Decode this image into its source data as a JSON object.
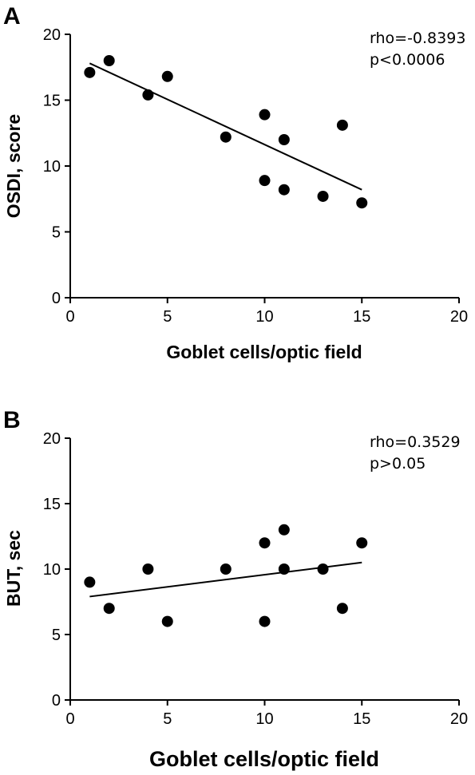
{
  "chart_data": [
    {
      "type": "scatter",
      "panel_label": "A",
      "xlabel": "Goblet cells/optic field",
      "ylabel": "OSDI, score",
      "xlim": [
        0,
        20
      ],
      "ylim": [
        0,
        20
      ],
      "xticks": [
        "0",
        "5",
        "10",
        "15",
        "20"
      ],
      "yticks": [
        "0",
        "5",
        "10",
        "15",
        "20"
      ],
      "annotations": [
        "rho=-0.8393",
        "p<0.0006"
      ],
      "points": [
        {
          "x": 1,
          "y": 17.1
        },
        {
          "x": 2,
          "y": 18.0
        },
        {
          "x": 4,
          "y": 15.4
        },
        {
          "x": 5,
          "y": 16.8
        },
        {
          "x": 8,
          "y": 12.2
        },
        {
          "x": 10,
          "y": 13.9
        },
        {
          "x": 10,
          "y": 8.9
        },
        {
          "x": 11,
          "y": 12.0
        },
        {
          "x": 11,
          "y": 8.2
        },
        {
          "x": 13,
          "y": 7.7
        },
        {
          "x": 14,
          "y": 13.1
        },
        {
          "x": 15,
          "y": 7.2
        }
      ],
      "fit_line": {
        "x": [
          1,
          15
        ],
        "y": [
          17.8,
          8.2
        ]
      },
      "grid": false,
      "legend": false
    },
    {
      "type": "scatter",
      "panel_label": "B",
      "xlabel": "Goblet cells/optic field",
      "ylabel": "BUT, sec",
      "xlim": [
        0,
        20
      ],
      "ylim": [
        0,
        20
      ],
      "xticks": [
        "0",
        "5",
        "10",
        "15",
        "20"
      ],
      "yticks": [
        "0",
        "5",
        "10",
        "15",
        "20"
      ],
      "annotations": [
        "rho=0.3529",
        "p>0.05"
      ],
      "points": [
        {
          "x": 1,
          "y": 9
        },
        {
          "x": 2,
          "y": 7
        },
        {
          "x": 4,
          "y": 10
        },
        {
          "x": 5,
          "y": 6
        },
        {
          "x": 8,
          "y": 10
        },
        {
          "x": 10,
          "y": 12
        },
        {
          "x": 10,
          "y": 6
        },
        {
          "x": 11,
          "y": 13
        },
        {
          "x": 11,
          "y": 10
        },
        {
          "x": 13,
          "y": 10
        },
        {
          "x": 14,
          "y": 7
        },
        {
          "x": 15,
          "y": 12
        }
      ],
      "fit_line": {
        "x": [
          1,
          15
        ],
        "y": [
          7.9,
          10.5
        ]
      },
      "grid": false,
      "legend": false
    }
  ]
}
